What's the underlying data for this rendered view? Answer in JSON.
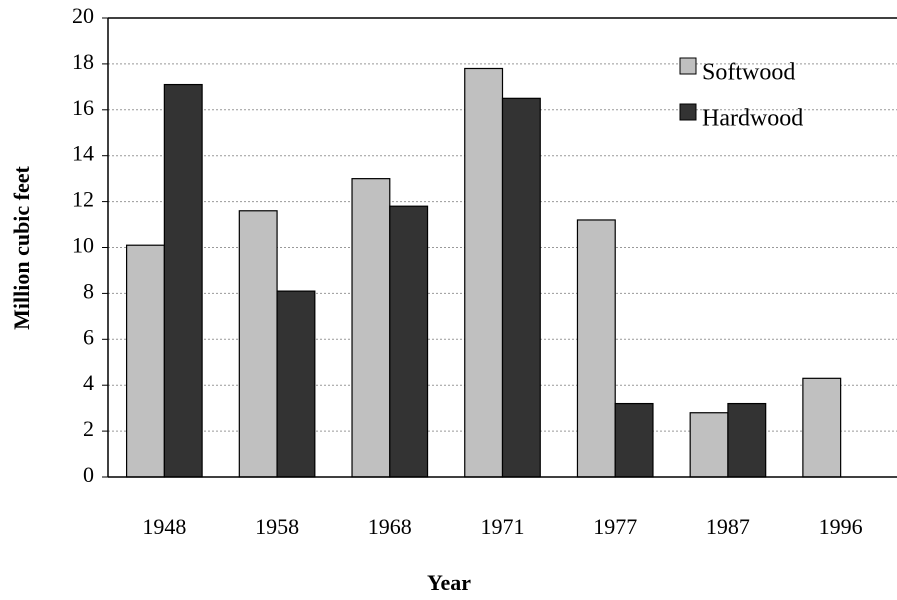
{
  "chart_data": {
    "type": "bar",
    "xlabel": "Year",
    "ylabel": "Million cubic feet",
    "categories": [
      "1948",
      "1958",
      "1968",
      "1971",
      "1977",
      "1987",
      "1996"
    ],
    "series": [
      {
        "name": "Softwood",
        "color": "#c0c0c0",
        "values": [
          10.1,
          11.6,
          13.0,
          17.8,
          11.2,
          2.8,
          4.3
        ]
      },
      {
        "name": "Hardwood",
        "color": "#333333",
        "values": [
          17.1,
          8.1,
          11.8,
          16.5,
          3.2,
          3.2,
          0
        ]
      }
    ],
    "ylim": [
      0,
      20
    ],
    "yticks": [
      0,
      2,
      4,
      6,
      8,
      10,
      12,
      14,
      16,
      18,
      20
    ],
    "grid": true,
    "legend": "top-right"
  }
}
